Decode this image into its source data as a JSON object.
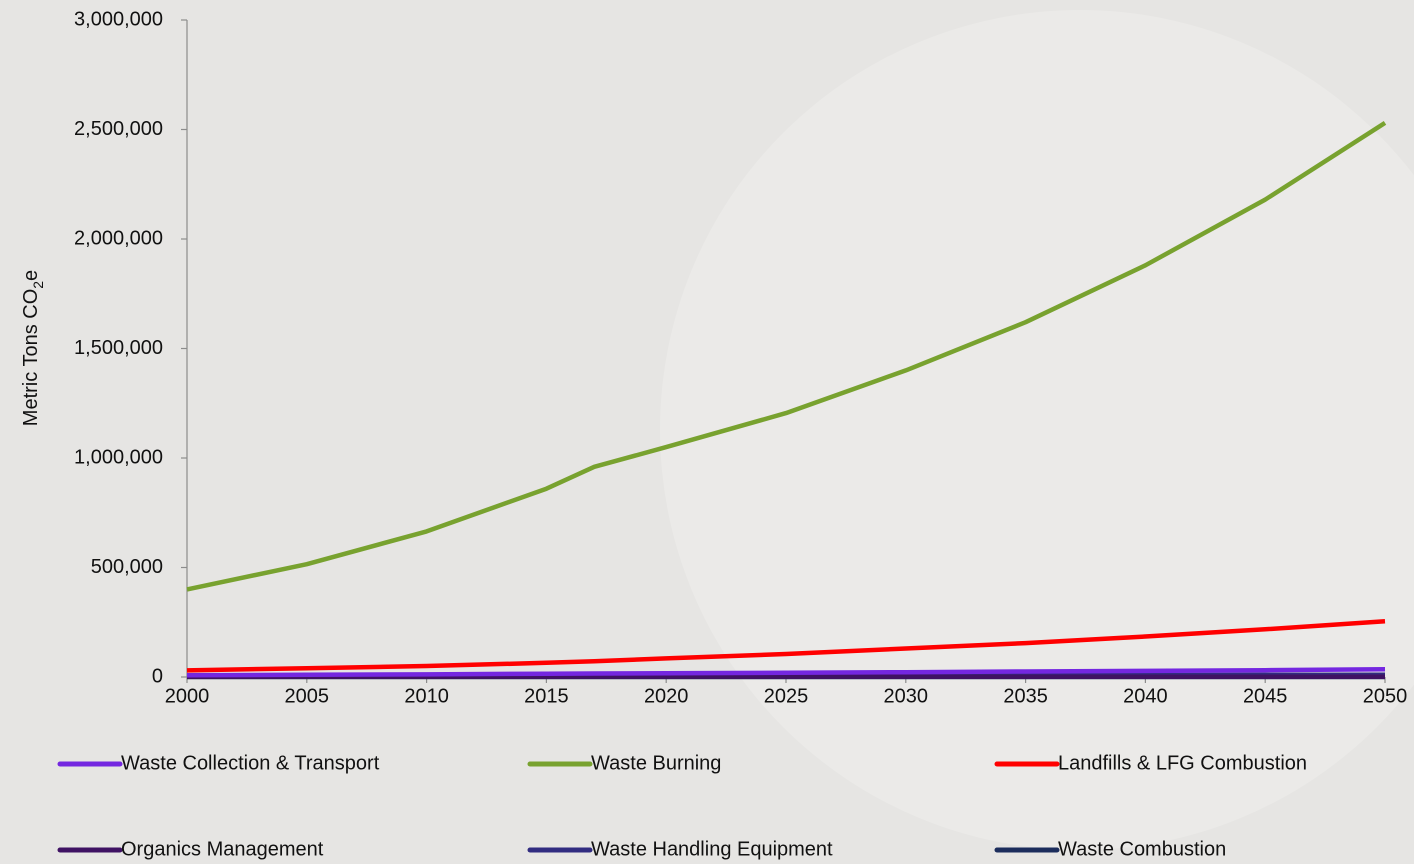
{
  "chart_data": {
    "type": "line",
    "y_label": {
      "text": "Metric Tons CO",
      "sub": "2",
      "suffix": "e"
    },
    "x": [
      2000,
      2005,
      2010,
      2015,
      2017,
      2020,
      2025,
      2030,
      2035,
      2040,
      2045,
      2050
    ],
    "series": [
      {
        "name": "Waste Collection & Transport",
        "color": "#7427e0",
        "values": [
          8000,
          10000,
          12000,
          15000,
          16000,
          17000,
          19000,
          22000,
          25000,
          28000,
          31000,
          35000
        ]
      },
      {
        "name": "Waste Burning",
        "color": "#78a22f",
        "values": [
          400000,
          515000,
          665000,
          860000,
          960000,
          1050000,
          1205000,
          1400000,
          1620000,
          1880000,
          2180000,
          2530000
        ]
      },
      {
        "name": "Landfills & LFG Combustion",
        "color": "#ff0000",
        "values": [
          30000,
          40000,
          50000,
          65000,
          72000,
          85000,
          105000,
          130000,
          155000,
          185000,
          218000,
          255000
        ]
      },
      {
        "name": "Organics Management",
        "color": "#3f1263",
        "values": [
          1000,
          1000,
          1000,
          1000,
          1000,
          1000,
          1000,
          1000,
          1000,
          1000,
          1000,
          1000
        ]
      },
      {
        "name": "Waste Handling Equipment",
        "color": "#312c80",
        "values": [
          5000,
          5500,
          6000,
          6500,
          7000,
          7000,
          7500,
          8000,
          8500,
          9000,
          9500,
          10000
        ]
      },
      {
        "name": "Waste Combustion",
        "color": "#1c2d5c",
        "values": [
          0,
          0,
          0,
          0,
          0,
          0,
          0,
          0,
          0,
          0,
          0,
          0
        ]
      }
    ],
    "xlim": [
      2000,
      2050
    ],
    "xticks": [
      2000,
      2005,
      2010,
      2015,
      2020,
      2025,
      2030,
      2035,
      2040,
      2045,
      2050
    ],
    "ylim": [
      0,
      3000000
    ],
    "yticks": [
      0,
      {
        "value": 500000,
        "label": "500,000"
      },
      {
        "value": 1000000,
        "label": "1,000,000"
      },
      {
        "value": 1500000,
        "label": "1,500,000"
      },
      {
        "value": 2000000,
        "label": "2,000,000"
      },
      {
        "value": 2500000,
        "label": "2,500,000"
      },
      {
        "value": 3000000,
        "label": "3,000,000"
      }
    ],
    "legend": "bottom"
  }
}
